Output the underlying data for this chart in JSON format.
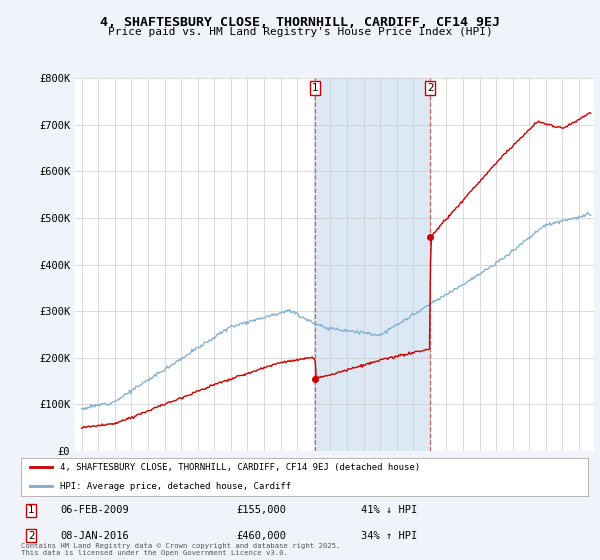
{
  "title": "4, SHAFTESBURY CLOSE, THORNHILL, CARDIFF, CF14 9EJ",
  "subtitle": "Price paid vs. HM Land Registry's House Price Index (HPI)",
  "ylim": [
    0,
    800000
  ],
  "yticks": [
    0,
    100000,
    200000,
    300000,
    400000,
    500000,
    600000,
    700000,
    800000
  ],
  "ytick_labels": [
    "£0",
    "£100K",
    "£200K",
    "£300K",
    "£400K",
    "£500K",
    "£600K",
    "£700K",
    "£800K"
  ],
  "red_line_label": "4, SHAFTESBURY CLOSE, THORNHILL, CARDIFF, CF14 9EJ (detached house)",
  "blue_line_label": "HPI: Average price, detached house, Cardiff",
  "annotation1_date": "06-FEB-2009",
  "annotation1_price": "£155,000",
  "annotation1_pct": "41% ↓ HPI",
  "annotation2_date": "08-JAN-2016",
  "annotation2_price": "£460,000",
  "annotation2_pct": "34% ↑ HPI",
  "vline1_x": 2009.09,
  "vline2_x": 2016.02,
  "footer": "Contains HM Land Registry data © Crown copyright and database right 2025.\nThis data is licensed under the Open Government Licence v3.0.",
  "bg_color": "#f0f4fa",
  "plot_bg_color": "#ffffff",
  "red_color": "#cc0000",
  "blue_color": "#7aaacf",
  "shade_color": "#dce9f5",
  "grid_color": "#cccccc",
  "xlim_left": 1994.6,
  "xlim_right": 2025.9
}
